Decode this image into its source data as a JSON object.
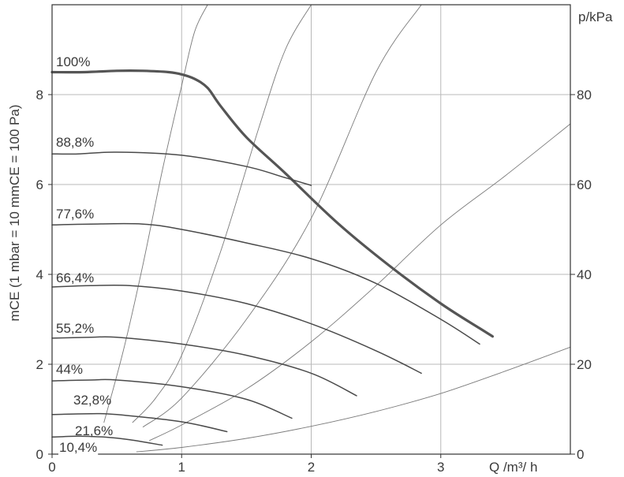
{
  "chart_data": {
    "type": "line",
    "title": "",
    "xlabel": "Q /m³/ h",
    "ylabel": "mCE (1 mbar = 10 mmCE = 100 Pa)",
    "y2label": "p/kPa",
    "xlim": [
      0,
      4
    ],
    "ylim": [
      0,
      10
    ],
    "y2lim": [
      0,
      100
    ],
    "grid": true,
    "x_ticks": [
      "0",
      "1",
      "2",
      "3"
    ],
    "y_ticks": [
      "0",
      "2",
      "4",
      "6",
      "8"
    ],
    "y2_ticks": [
      "0",
      "20",
      "40",
      "60",
      "80"
    ],
    "series": [
      {
        "name": "100%",
        "emphasis": true,
        "x": [
          0,
          0.25,
          0.5,
          0.7,
          0.9,
          1.0,
          1.1,
          1.2,
          1.3,
          1.5,
          1.8,
          2.2,
          2.6,
          3.0,
          3.3,
          3.4
        ],
        "y": [
          8.5,
          8.5,
          8.53,
          8.53,
          8.5,
          8.45,
          8.35,
          8.15,
          7.75,
          7.05,
          6.25,
          5.15,
          4.2,
          3.35,
          2.8,
          2.62
        ]
      },
      {
        "name": "88,8%",
        "x": [
          0,
          0.2,
          0.5,
          1.0,
          1.5,
          1.8,
          2.0
        ],
        "y": [
          6.68,
          6.68,
          6.72,
          6.65,
          6.4,
          6.15,
          5.98
        ]
      },
      {
        "name": "77,6%",
        "x": [
          0,
          0.3,
          0.7,
          1.0,
          1.5,
          2.0,
          2.5,
          3.0,
          3.3
        ],
        "y": [
          5.1,
          5.12,
          5.12,
          5.0,
          4.7,
          4.35,
          3.8,
          3.0,
          2.45
        ]
      },
      {
        "name": "66,4%",
        "x": [
          0,
          0.3,
          0.6,
          1.0,
          1.5,
          2.0,
          2.5,
          2.85
        ],
        "y": [
          3.72,
          3.75,
          3.75,
          3.63,
          3.35,
          2.9,
          2.3,
          1.8
        ]
      },
      {
        "name": "55,2%",
        "x": [
          0,
          0.3,
          0.5,
          1.0,
          1.5,
          2.0,
          2.35
        ],
        "y": [
          2.58,
          2.6,
          2.6,
          2.45,
          2.2,
          1.8,
          1.3
        ]
      },
      {
        "name": "44%",
        "x": [
          0,
          0.3,
          0.5,
          1.0,
          1.5,
          1.85
        ],
        "y": [
          1.63,
          1.65,
          1.65,
          1.5,
          1.22,
          0.8
        ]
      },
      {
        "name": "32,8%",
        "x": [
          0,
          0.3,
          0.5,
          1.0,
          1.35
        ],
        "y": [
          0.88,
          0.9,
          0.88,
          0.72,
          0.5
        ]
      },
      {
        "name": "21,6%",
        "x": [
          0,
          0.2,
          0.4,
          0.6,
          0.85
        ],
        "y": [
          0.38,
          0.4,
          0.38,
          0.32,
          0.2
        ]
      },
      {
        "name": "10,4%",
        "x": [],
        "y": []
      }
    ],
    "system_curves": [
      {
        "x": [
          0.65,
          1.0,
          1.5,
          2.0,
          2.5,
          3.0,
          3.5,
          4.0
        ],
        "y": [
          0.05,
          0.15,
          0.35,
          0.62,
          0.95,
          1.35,
          1.85,
          2.38
        ]
      },
      {
        "x": [
          0.75,
          1.0,
          1.5,
          2.0,
          2.5,
          3.0,
          3.5,
          4.0
        ],
        "y": [
          0.3,
          0.65,
          1.45,
          2.5,
          3.75,
          5.1,
          6.2,
          7.35
        ]
      },
      {
        "x": [
          0.7,
          1.0,
          1.5,
          2.0,
          2.5,
          2.85
        ],
        "y": [
          0.6,
          1.25,
          3.0,
          5.25,
          8.5,
          10.0
        ]
      },
      {
        "x": [
          0.62,
          0.8,
          1.0,
          1.3,
          1.6,
          1.8,
          2.0
        ],
        "y": [
          0.7,
          1.25,
          2.2,
          4.5,
          7.3,
          9.0,
          10.0
        ]
      },
      {
        "x": [
          0.4,
          0.55,
          0.7,
          0.85,
          1.0,
          1.1,
          1.2
        ],
        "y": [
          0.7,
          2.3,
          4.2,
          6.3,
          8.2,
          9.4,
          10.0
        ]
      }
    ]
  }
}
